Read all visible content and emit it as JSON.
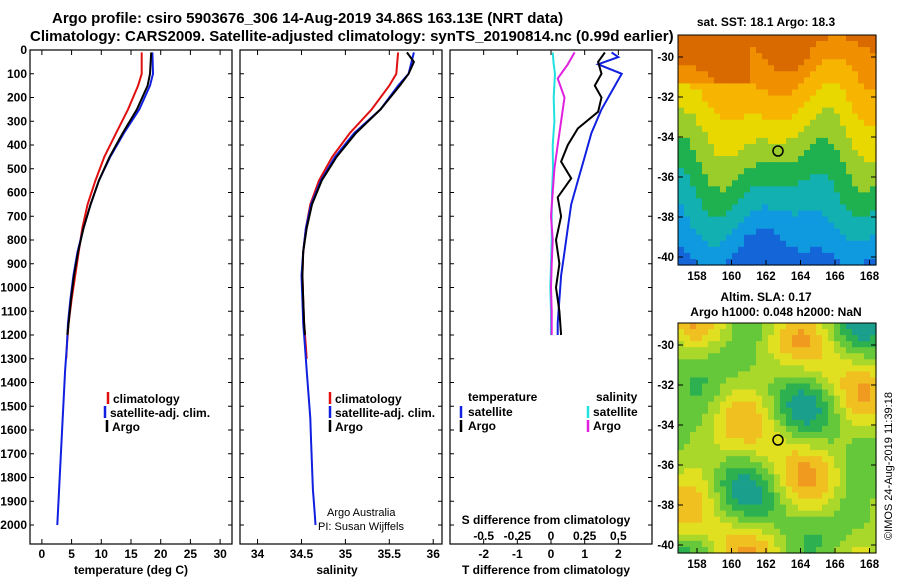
{
  "title": {
    "line1": "Argo profile: csiro 5903676_306 14-Aug-2019 34.86S 163.13E (NRT data)",
    "line2": "Climatology: CARS2009. Satellite-adjusted climatology: synTS_20190814.nc (0.99d earlier)"
  },
  "colors": {
    "climatology": "#e01010",
    "satellite": "#1020e0",
    "argo": "#000000",
    "sat_salinity": "#20e0e0",
    "argo_salinity": "#e020e0"
  },
  "depth_axis": {
    "ticks": [
      0,
      100,
      200,
      300,
      400,
      500,
      600,
      700,
      800,
      900,
      1000,
      1100,
      1200,
      1300,
      1400,
      1500,
      1600,
      1700,
      1800,
      1900,
      2000
    ],
    "range": [
      0,
      2080
    ]
  },
  "chart_data": [
    {
      "type": "line",
      "panel": "temperature",
      "xlabel": "temperature (deg C)",
      "x_ticks": [
        0,
        5,
        10,
        15,
        20,
        25,
        30
      ],
      "xlim": [
        -2,
        32
      ],
      "legend": [
        "climatology",
        "satellite-adj. clim.",
        "Argo"
      ],
      "series": [
        {
          "name": "climatology",
          "color": "#e01010",
          "points": [
            [
              16.8,
              10
            ],
            [
              16.8,
              100
            ],
            [
              16.2,
              150
            ],
            [
              14.5,
              250
            ],
            [
              12.5,
              350
            ],
            [
              10.5,
              450
            ],
            [
              9.0,
              550
            ],
            [
              7.7,
              650
            ],
            [
              6.8,
              750
            ],
            [
              6.2,
              850
            ],
            [
              5.6,
              950
            ],
            [
              5.0,
              1050
            ],
            [
              4.5,
              1150
            ],
            [
              4.2,
              1250
            ],
            [
              4.1,
              1300
            ]
          ]
        },
        {
          "name": "satellite-adj. clim.",
          "color": "#1020e0",
          "points": [
            [
              18.6,
              10
            ],
            [
              18.7,
              100
            ],
            [
              18.2,
              150
            ],
            [
              16.4,
              250
            ],
            [
              13.8,
              350
            ],
            [
              11.5,
              450
            ],
            [
              9.6,
              550
            ],
            [
              8.2,
              650
            ],
            [
              7.0,
              750
            ],
            [
              6.0,
              850
            ],
            [
              5.3,
              950
            ],
            [
              4.8,
              1050
            ],
            [
              4.4,
              1150
            ],
            [
              4.2,
              1250
            ],
            [
              3.9,
              1350
            ],
            [
              3.7,
              1450
            ],
            [
              3.5,
              1550
            ],
            [
              3.3,
              1650
            ],
            [
              3.1,
              1750
            ],
            [
              2.9,
              1850
            ],
            [
              2.7,
              1950
            ],
            [
              2.6,
              2000
            ]
          ]
        },
        {
          "name": "Argo",
          "color": "#000000",
          "points": [
            [
              18.4,
              10
            ],
            [
              18.2,
              100
            ],
            [
              17.8,
              150
            ],
            [
              16.0,
              250
            ],
            [
              13.6,
              350
            ],
            [
              11.4,
              450
            ],
            [
              9.6,
              550
            ],
            [
              8.2,
              650
            ],
            [
              7.0,
              750
            ],
            [
              6.1,
              850
            ],
            [
              5.4,
              950
            ],
            [
              4.9,
              1050
            ],
            [
              4.5,
              1150
            ],
            [
              4.3,
              1200
            ]
          ]
        }
      ]
    },
    {
      "type": "line",
      "panel": "salinity",
      "xlabel": "salinity",
      "x_ticks": [
        34,
        34.5,
        35,
        35.5,
        36
      ],
      "xlim": [
        33.8,
        36.1
      ],
      "legend": [
        "climatology",
        "satellite-adj. clim.",
        "Argo"
      ],
      "series": [
        {
          "name": "climatology",
          "color": "#e01010",
          "points": [
            [
              35.6,
              10
            ],
            [
              35.58,
              100
            ],
            [
              35.5,
              150
            ],
            [
              35.3,
              250
            ],
            [
              35.05,
              350
            ],
            [
              34.85,
              450
            ],
            [
              34.7,
              550
            ],
            [
              34.6,
              650
            ],
            [
              34.55,
              750
            ],
            [
              34.52,
              850
            ],
            [
              34.51,
              950
            ],
            [
              34.52,
              1050
            ],
            [
              34.53,
              1150
            ],
            [
              34.55,
              1250
            ],
            [
              34.56,
              1300
            ]
          ]
        },
        {
          "name": "satellite-adj. clim.",
          "color": "#1020e0",
          "points": [
            [
              35.78,
              10
            ],
            [
              35.72,
              100
            ],
            [
              35.6,
              150
            ],
            [
              35.4,
              250
            ],
            [
              35.1,
              350
            ],
            [
              34.88,
              450
            ],
            [
              34.72,
              550
            ],
            [
              34.61,
              650
            ],
            [
              34.55,
              750
            ],
            [
              34.52,
              850
            ],
            [
              34.5,
              950
            ],
            [
              34.51,
              1050
            ],
            [
              34.52,
              1150
            ],
            [
              34.54,
              1250
            ],
            [
              34.56,
              1350
            ],
            [
              34.58,
              1450
            ],
            [
              34.6,
              1550
            ],
            [
              34.61,
              1650
            ],
            [
              34.62,
              1750
            ],
            [
              34.63,
              1850
            ],
            [
              34.65,
              1950
            ],
            [
              34.66,
              2000
            ]
          ]
        },
        {
          "name": "Argo",
          "color": "#000000",
          "points": [
            [
              35.7,
              10
            ],
            [
              35.78,
              50
            ],
            [
              35.72,
              100
            ],
            [
              35.62,
              150
            ],
            [
              35.4,
              250
            ],
            [
              35.12,
              350
            ],
            [
              34.9,
              450
            ],
            [
              34.73,
              550
            ],
            [
              34.62,
              650
            ],
            [
              34.56,
              750
            ],
            [
              34.52,
              850
            ],
            [
              34.51,
              950
            ],
            [
              34.52,
              1050
            ],
            [
              34.53,
              1150
            ],
            [
              34.54,
              1200
            ]
          ]
        }
      ]
    },
    {
      "type": "line",
      "panel": "difference",
      "xlabel": "T difference from climatology",
      "xlabel_top": "S difference from climatology",
      "x_ticks": [
        -2,
        -1,
        0,
        1,
        2
      ],
      "x_ticks_top": [
        "-0.5",
        "-0.25",
        "0",
        "0.25",
        "0.5"
      ],
      "xlim": [
        -3,
        3
      ],
      "legend_left_title": "temperature",
      "legend_right_title": "salinity",
      "legend": [
        "satellite",
        "Argo",
        "satellite",
        "Argo"
      ],
      "series": [
        {
          "name": "temperature satellite",
          "color": "#1020e0",
          "points": [
            [
              1.8,
              10
            ],
            [
              2.0,
              30
            ],
            [
              1.4,
              60
            ],
            [
              2.1,
              100
            ],
            [
              1.9,
              150
            ],
            [
              1.5,
              250
            ],
            [
              1.2,
              350
            ],
            [
              1.0,
              450
            ],
            [
              0.8,
              550
            ],
            [
              0.6,
              650
            ],
            [
              0.5,
              750
            ],
            [
              0.4,
              850
            ],
            [
              0.3,
              950
            ],
            [
              0.25,
              1050
            ],
            [
              0.2,
              1150
            ],
            [
              0.2,
              1200
            ]
          ]
        },
        {
          "name": "temperature Argo",
          "color": "#000000",
          "points": [
            [
              1.6,
              10
            ],
            [
              1.4,
              50
            ],
            [
              1.5,
              100
            ],
            [
              1.3,
              150
            ],
            [
              1.5,
              200
            ],
            [
              1.4,
              260
            ],
            [
              0.8,
              330
            ],
            [
              0.5,
              400
            ],
            [
              0.3,
              470
            ],
            [
              0.6,
              540
            ],
            [
              0.2,
              620
            ],
            [
              0.3,
              700
            ],
            [
              0.15,
              800
            ],
            [
              0.25,
              900
            ],
            [
              0.15,
              1000
            ],
            [
              0.25,
              1100
            ],
            [
              0.3,
              1200
            ]
          ]
        },
        {
          "name": "salinity satellite",
          "color": "#20e0e0",
          "points": [
            [
              0.05,
              10
            ],
            [
              0.08,
              60
            ],
            [
              0.12,
              100
            ],
            [
              0.08,
              200
            ],
            [
              0.1,
              300
            ],
            [
              0.05,
              400
            ],
            [
              0.06,
              500
            ],
            [
              0.03,
              600
            ],
            [
              0.02,
              700
            ],
            [
              0.02,
              800
            ],
            [
              0.0,
              900
            ],
            [
              -0.02,
              1000
            ],
            [
              0.0,
              1100
            ],
            [
              0.0,
              1200
            ]
          ]
        },
        {
          "name": "salinity Argo",
          "color": "#e020e0",
          "points": [
            [
              0.7,
              10
            ],
            [
              0.5,
              60
            ],
            [
              0.2,
              120
            ],
            [
              0.4,
              200
            ],
            [
              0.3,
              300
            ],
            [
              0.2,
              400
            ],
            [
              0.1,
              500
            ],
            [
              0.05,
              600
            ],
            [
              0.0,
              700
            ],
            [
              0.05,
              800
            ],
            [
              0.02,
              900
            ],
            [
              0.0,
              1000
            ],
            [
              0.02,
              1100
            ],
            [
              0.02,
              1200
            ]
          ]
        }
      ]
    }
  ],
  "maps": {
    "sst": {
      "title": "sat. SST: 18.1  Argo: 18.3",
      "lat_ticks": [
        "-30",
        "-32",
        "-34",
        "-36",
        "-38",
        "-40"
      ],
      "lon_ticks": [
        "158",
        "160",
        "162",
        "164",
        "166",
        "168"
      ]
    },
    "sla": {
      "title1": "Altim. SLA: 0.17",
      "title2": "Argo h1000: 0.048 h2000: NaN",
      "lat_ticks": [
        "-30",
        "-32",
        "-34",
        "-36",
        "-38",
        "-40"
      ],
      "lon_ticks": [
        "158",
        "160",
        "162",
        "164",
        "166",
        "168"
      ]
    }
  },
  "credit": {
    "line1": "Argo Australia",
    "line2": "PI: Susan Wijffels",
    "imos": "©IMOS 24-Aug-2019 11:39:18"
  }
}
